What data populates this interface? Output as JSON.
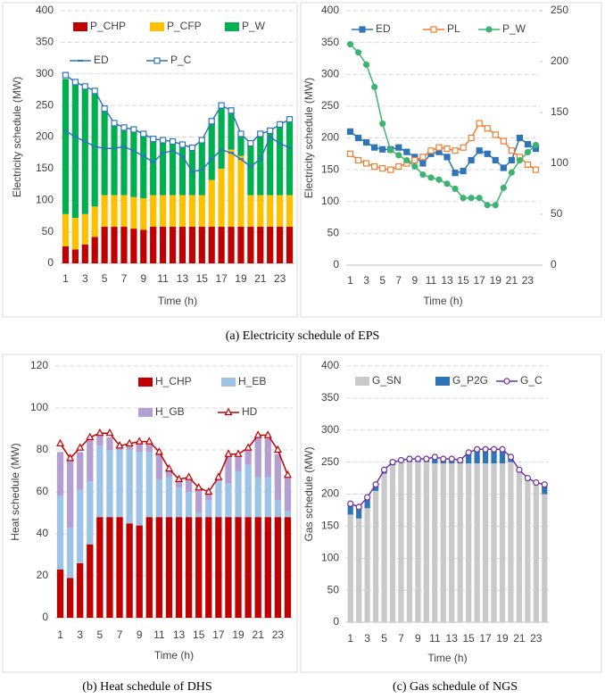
{
  "captions": [
    "(a) Electricity schedule of EPS",
    "(b) Heat schedule of DHS",
    "(c) Gas schedule of NGS"
  ],
  "chart_data": [
    {
      "type": "bar",
      "x_title": "Time (h)",
      "y_title": "Electricity schedule (MW)",
      "categories": [
        "1",
        null,
        "3",
        null,
        "5",
        null,
        "7",
        null,
        "9",
        null,
        "11",
        null,
        "13",
        null,
        "15",
        null,
        "17",
        null,
        "19",
        null,
        "21",
        null,
        "23",
        null
      ],
      "ylim": [
        0,
        400
      ],
      "yticks": [
        0,
        50,
        100,
        150,
        200,
        250,
        300,
        350,
        400
      ],
      "grid": true,
      "series": [
        {
          "name": "P_CHP",
          "type": "bar",
          "color": "#C00000",
          "values": [
            27,
            22,
            30,
            42,
            58,
            58,
            58,
            55,
            53,
            58,
            58,
            58,
            58,
            58,
            58,
            58,
            58,
            58,
            58,
            58,
            58,
            58,
            58,
            58
          ]
        },
        {
          "name": "P_CFP",
          "type": "bar",
          "color": "#FFC000",
          "values": [
            51,
            50,
            48,
            48,
            50,
            50,
            50,
            50,
            50,
            50,
            50,
            50,
            50,
            50,
            50,
            74,
            92,
            122,
            112,
            50,
            50,
            50,
            50,
            50
          ]
        },
        {
          "name": "P_W",
          "type": "bar",
          "color": "#00B050",
          "values": [
            214,
            210,
            197,
            178,
            137,
            112,
            104,
            105,
            102,
            89,
            87,
            85,
            80,
            72,
            87,
            93,
            98,
            60,
            35,
            80,
            97,
            100,
            110,
            117
          ]
        },
        {
          "name": "ED",
          "type": "line",
          "marker": "dash",
          "color": "#2E75B6",
          "values": [
            210,
            200,
            193,
            185,
            182,
            182,
            185,
            178,
            170,
            160,
            175,
            178,
            170,
            145,
            148,
            165,
            180,
            175,
            165,
            153,
            165,
            200,
            190,
            183
          ]
        },
        {
          "name": "P_C",
          "type": "line",
          "marker": "square-open",
          "color": "#2E75B6",
          "values": [
            298,
            287,
            280,
            273,
            245,
            222,
            215,
            212,
            205,
            197,
            195,
            193,
            188,
            183,
            195,
            225,
            250,
            242,
            205,
            190,
            205,
            210,
            220,
            228
          ]
        }
      ]
    },
    {
      "type": "line",
      "x_title": "Time (h)",
      "y_title": "Electricity schedule (MW)",
      "categories": [
        "1",
        null,
        "3",
        null,
        "5",
        null,
        "7",
        null,
        "9",
        null,
        "11",
        null,
        "13",
        null,
        "15",
        null,
        "17",
        null,
        "19",
        null,
        "21",
        null,
        "23",
        null
      ],
      "ylim": [
        0,
        400
      ],
      "yticks": [
        0,
        50,
        100,
        150,
        200,
        250,
        300,
        350,
        400
      ],
      "y2lim": [
        0,
        250
      ],
      "y2ticks": [
        0,
        50,
        100,
        150,
        200,
        250
      ],
      "grid": true,
      "series": [
        {
          "name": "ED",
          "type": "line",
          "marker": "square",
          "color": "#2E75B6",
          "values": [
            210,
            200,
            193,
            185,
            182,
            182,
            185,
            178,
            170,
            160,
            175,
            178,
            170,
            145,
            148,
            165,
            180,
            175,
            165,
            153,
            165,
            200,
            190,
            183
          ]
        },
        {
          "name": "PL",
          "type": "line",
          "marker": "square-open",
          "color": "#ED7D31",
          "values": [
            175,
            165,
            160,
            155,
            152,
            150,
            155,
            160,
            165,
            170,
            180,
            185,
            183,
            180,
            185,
            200,
            223,
            215,
            205,
            195,
            180,
            170,
            158,
            150
          ]
        },
        {
          "name": "P_W",
          "type": "line",
          "marker": "circle",
          "color": "#3CB371",
          "axis": "y2",
          "values": [
            217,
            209,
            197,
            175,
            139,
            113,
            108,
            103,
            97,
            89,
            86,
            84,
            80,
            75,
            66,
            66,
            66,
            59,
            59,
            76,
            91,
            103,
            111,
            118
          ]
        }
      ]
    },
    {
      "type": "bar",
      "x_title": "Time (h)",
      "y_title": "Heat schedule (MW)",
      "categories": [
        "1",
        null,
        "3",
        null,
        "5",
        null,
        "7",
        null,
        "9",
        null,
        "11",
        null,
        "13",
        null,
        "15",
        null,
        "17",
        null,
        "19",
        null,
        "21",
        null,
        "23",
        null
      ],
      "ylim": [
        0,
        120
      ],
      "yticks": [
        0,
        20,
        40,
        60,
        80,
        100,
        120
      ],
      "grid": true,
      "series": [
        {
          "name": "H_CHP",
          "type": "bar",
          "color": "#C00000",
          "values": [
            23,
            19,
            26,
            35,
            48,
            48,
            48,
            45,
            44,
            48,
            48,
            48,
            48,
            48,
            48,
            48,
            48,
            48,
            48,
            48,
            48,
            48,
            48,
            48
          ]
        },
        {
          "name": "H_EB",
          "type": "bar",
          "color": "#9DC3E6",
          "values": [
            35,
            24,
            35,
            30,
            34,
            32,
            32,
            35,
            35,
            31,
            18,
            19,
            14,
            12,
            2,
            8,
            17,
            16,
            22,
            25,
            19,
            19,
            8,
            3
          ]
        },
        {
          "name": "H_GB",
          "type": "bar",
          "color": "#B4A0D0",
          "values": [
            21,
            32,
            18,
            21,
            5,
            6,
            2,
            2,
            4,
            4,
            13,
            3,
            4,
            7,
            12,
            4,
            1,
            13,
            7,
            7,
            19,
            19,
            22,
            16
          ]
        },
        {
          "name": "HD",
          "type": "line",
          "marker": "triangle-open",
          "color": "#C00000",
          "values": [
            83,
            76,
            81,
            86,
            88,
            88,
            82,
            83,
            84,
            84,
            79,
            71,
            66,
            67,
            62,
            60,
            67,
            78,
            78,
            81,
            87,
            87,
            80,
            68
          ]
        }
      ]
    },
    {
      "type": "bar",
      "x_title": "Time (h)",
      "y_title": "Gas schedule (MW)",
      "categories": [
        "1",
        null,
        "3",
        null,
        "5",
        null,
        "7",
        null,
        "9",
        null,
        "11",
        null,
        "13",
        null,
        "15",
        null,
        "17",
        null,
        "19",
        null,
        "21",
        null,
        "23",
        null
      ],
      "ylim": [
        0,
        400
      ],
      "yticks": [
        0,
        50,
        100,
        150,
        200,
        250,
        300,
        350,
        400
      ],
      "grid": true,
      "series": [
        {
          "name": "G_SN",
          "type": "bar",
          "color": "#C9C9C9",
          "values": [
            168,
            162,
            178,
            205,
            232,
            245,
            250,
            250,
            250,
            250,
            248,
            248,
            248,
            248,
            248,
            248,
            248,
            248,
            248,
            250,
            238,
            225,
            218,
            200
          ]
        },
        {
          "name": "G_P2G",
          "type": "bar",
          "color": "#2E75B6",
          "values": [
            17,
            18,
            17,
            10,
            6,
            5,
            3,
            5,
            5,
            5,
            10,
            7,
            7,
            5,
            17,
            22,
            22,
            22,
            22,
            8,
            0,
            0,
            0,
            15
          ]
        },
        {
          "name": "G_C",
          "type": "line",
          "marker": "circle-open",
          "color": "#7030A0",
          "values": [
            185,
            180,
            195,
            215,
            238,
            250,
            253,
            255,
            255,
            255,
            258,
            255,
            255,
            253,
            265,
            270,
            270,
            270,
            270,
            258,
            238,
            225,
            218,
            215
          ]
        }
      ]
    }
  ]
}
